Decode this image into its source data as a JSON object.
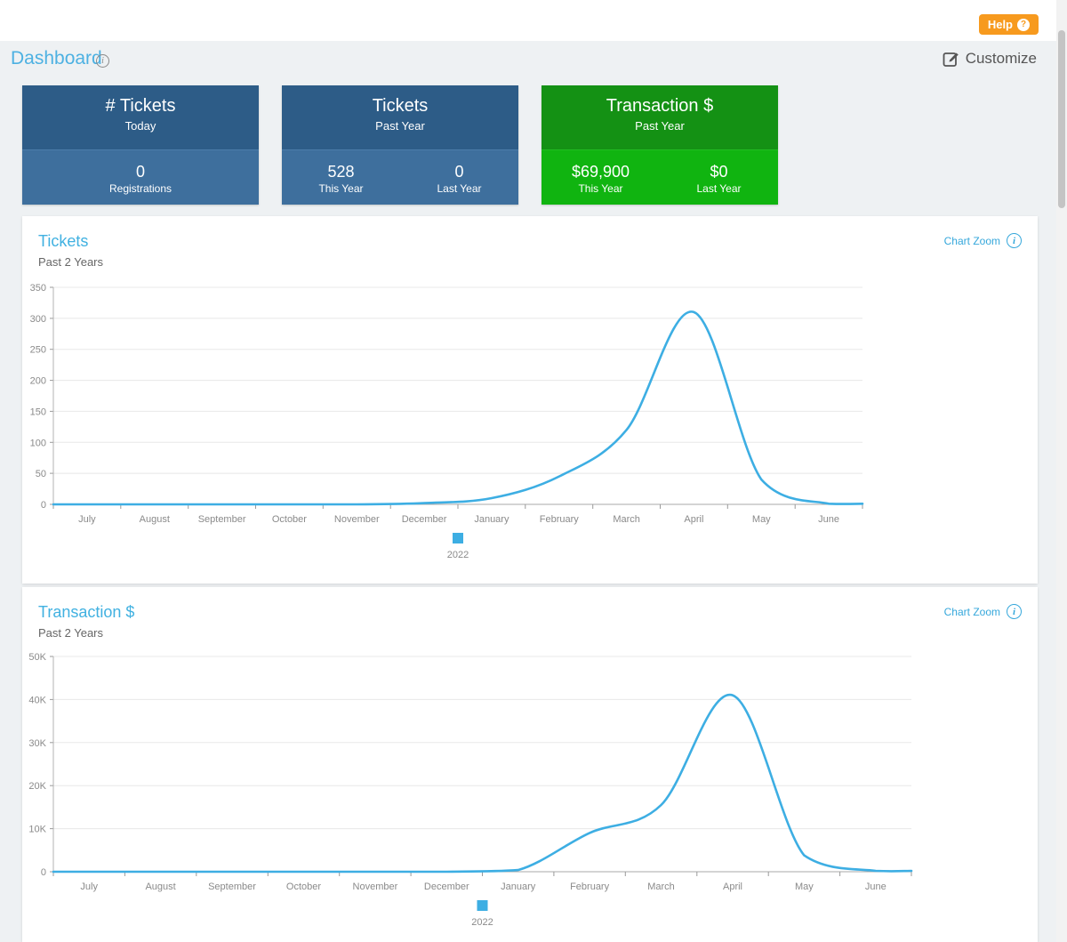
{
  "topbar": {
    "help_label": "Help"
  },
  "icons": {
    "info_glyph": "i",
    "help_glyph": "?"
  },
  "header": {
    "title": "Dashboard",
    "customize_label": "Customize"
  },
  "stat_cards": [
    {
      "title": "# Tickets",
      "subtitle": "Today",
      "theme": "blue",
      "values": [
        {
          "value": "0",
          "label": "Registrations"
        }
      ]
    },
    {
      "title": "Tickets",
      "subtitle": "Past Year",
      "theme": "blue",
      "values": [
        {
          "value": "528",
          "label": "This Year"
        },
        {
          "value": "0",
          "label": "Last Year"
        }
      ]
    },
    {
      "title": "Transaction $",
      "subtitle": "Past Year",
      "theme": "green",
      "values": [
        {
          "value": "$69,900",
          "label": "This Year"
        },
        {
          "value": "$0",
          "label": "Last Year"
        }
      ]
    }
  ],
  "colors": {
    "accent_blue": "#41b1e1",
    "card_blue_dark": "#2d5c87",
    "card_blue_light": "#3e6f9d",
    "card_green_dark": "#149114",
    "card_green_light": "#10b410",
    "help_orange": "#f79a1e",
    "line_blue": "#3daee3"
  },
  "chart_data": [
    {
      "type": "line",
      "title": "Tickets",
      "subtitle": "Past 2 Years",
      "zoom_label": "Chart Zoom",
      "categories": [
        "July",
        "August",
        "September",
        "October",
        "November",
        "December",
        "January",
        "February",
        "March",
        "April",
        "May",
        "June"
      ],
      "series": [
        {
          "name": "2022",
          "values": [
            0,
            0,
            0,
            0,
            0,
            2,
            10,
            45,
            120,
            310,
            40,
            1
          ]
        }
      ],
      "xlabel": "",
      "ylabel": "",
      "ylim": [
        0,
        350
      ],
      "yticks": [
        {
          "v": 0,
          "label": "0"
        },
        {
          "v": 50,
          "label": "50"
        },
        {
          "v": 100,
          "label": "100"
        },
        {
          "v": 150,
          "label": "150"
        },
        {
          "v": 200,
          "label": "200"
        },
        {
          "v": 250,
          "label": "250"
        },
        {
          "v": 300,
          "label": "300"
        },
        {
          "v": 350,
          "label": "350"
        }
      ],
      "grid": true,
      "legend_position": "bottom",
      "line_color": "#3daee3"
    },
    {
      "type": "line",
      "title": "Transaction $",
      "subtitle": "Past 2 Years",
      "zoom_label": "Chart Zoom",
      "categories": [
        "July",
        "August",
        "September",
        "October",
        "November",
        "December",
        "January",
        "February",
        "March",
        "April",
        "May",
        "June"
      ],
      "series": [
        {
          "name": "2022",
          "values": [
            0,
            0,
            0,
            0,
            0,
            0,
            400,
            9000,
            15500,
            41000,
            3800,
            200
          ]
        }
      ],
      "xlabel": "",
      "ylabel": "",
      "ylim": [
        0,
        50000
      ],
      "yticks": [
        {
          "v": 0,
          "label": "0"
        },
        {
          "v": 10000,
          "label": "10K"
        },
        {
          "v": 20000,
          "label": "20K"
        },
        {
          "v": 30000,
          "label": "30K"
        },
        {
          "v": 40000,
          "label": "40K"
        },
        {
          "v": 50000,
          "label": "50K"
        }
      ],
      "grid": true,
      "legend_position": "bottom",
      "line_color": "#3daee3"
    }
  ]
}
